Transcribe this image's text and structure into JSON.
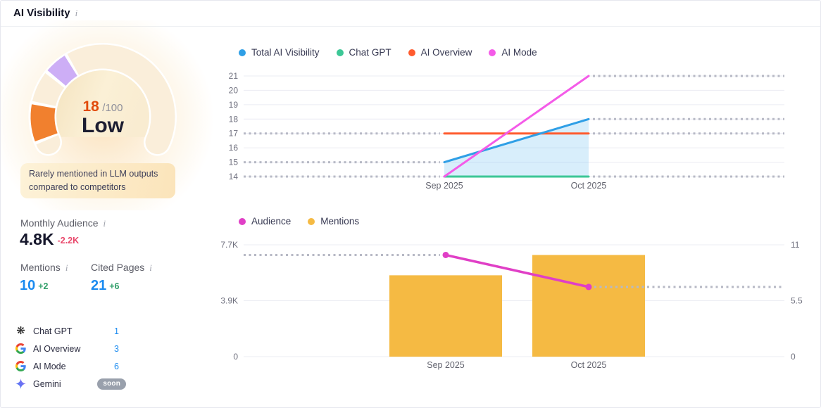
{
  "header": {
    "title": "AI Visibility",
    "info": "i"
  },
  "gauge": {
    "score": "18",
    "denominator": "/100",
    "rating": "Low",
    "note": "Rarely mentioned in LLM outputs compared to competitors",
    "colors": {
      "ring": "#faeeda",
      "score_segment": "#f1802e",
      "marker_segment": "#cdaef6"
    }
  },
  "stats": {
    "audience": {
      "label": "Monthly Audience",
      "value": "4.8K",
      "change": "-2.2K"
    },
    "mentions": {
      "label": "Mentions",
      "value": "10",
      "change": "+2"
    },
    "cited": {
      "label": "Cited Pages",
      "value": "21",
      "change": "+6"
    }
  },
  "platforms": {
    "items": [
      {
        "icon": "chatgpt-icon",
        "label": "Chat GPT",
        "value": "1"
      },
      {
        "icon": "google-icon",
        "label": "AI Overview",
        "value": "3"
      },
      {
        "icon": "google-icon",
        "label": "AI Mode",
        "value": "6"
      },
      {
        "icon": "gemini-icon",
        "label": "Gemini",
        "badge": "soon"
      }
    ]
  },
  "colors": {
    "accent_blue": "#1b8bf0",
    "negative_red": "#e9486b",
    "positive_green": "#2f9e68",
    "gridline": "#ebecf3",
    "dashed": "#b7b9c5",
    "tick_text": "#70717f",
    "axis_label_text": "#62636e"
  },
  "chart_data": [
    {
      "id": "ai-visibility-trend",
      "type": "line",
      "x": [
        "Sep 2025",
        "Oct 2025"
      ],
      "ylim": [
        14,
        21
      ],
      "yticks": [
        21,
        20,
        19,
        18,
        17,
        16,
        15,
        14
      ],
      "grid": true,
      "legend_position": "top",
      "series": [
        {
          "name": "Total AI Visibility",
          "color": "#2f9fe6",
          "values": [
            15,
            18
          ],
          "z": 3,
          "area": true,
          "area_color": "rgba(125,199,242,0.30)"
        },
        {
          "name": "Chat GPT",
          "color": "#3cc796",
          "values": [
            14,
            14
          ],
          "z": 1
        },
        {
          "name": "AI Overview",
          "color": "#ff5b2e",
          "values": [
            17,
            17
          ],
          "z": 2
        },
        {
          "name": "AI Mode",
          "color": "#f45be8",
          "values": [
            14,
            21
          ],
          "z": 4
        }
      ]
    },
    {
      "id": "audience-mentions",
      "type": "bar+line",
      "x": [
        "Sep 2025",
        "Oct 2025"
      ],
      "left_axis": {
        "max": 7700,
        "ticks": [
          {
            "v": 7700,
            "label": "7.7K"
          },
          {
            "v": 3850,
            "label": "3.9K"
          },
          {
            "v": 0,
            "label": "0"
          }
        ]
      },
      "right_axis": {
        "max": 11,
        "ticks": [
          {
            "v": 11,
            "label": "11"
          },
          {
            "v": 5.5,
            "label": "5.5"
          },
          {
            "v": 0,
            "label": "0"
          }
        ]
      },
      "grid": true,
      "legend_position": "top",
      "series": [
        {
          "name": "Audience",
          "type": "line",
          "axis": "left",
          "color": "#e03fc6",
          "values": [
            7000,
            4800
          ],
          "markers": true
        },
        {
          "name": "Mentions",
          "type": "bar",
          "axis": "right",
          "color": "#f5ba43",
          "values": [
            8,
            10
          ]
        }
      ]
    }
  ]
}
